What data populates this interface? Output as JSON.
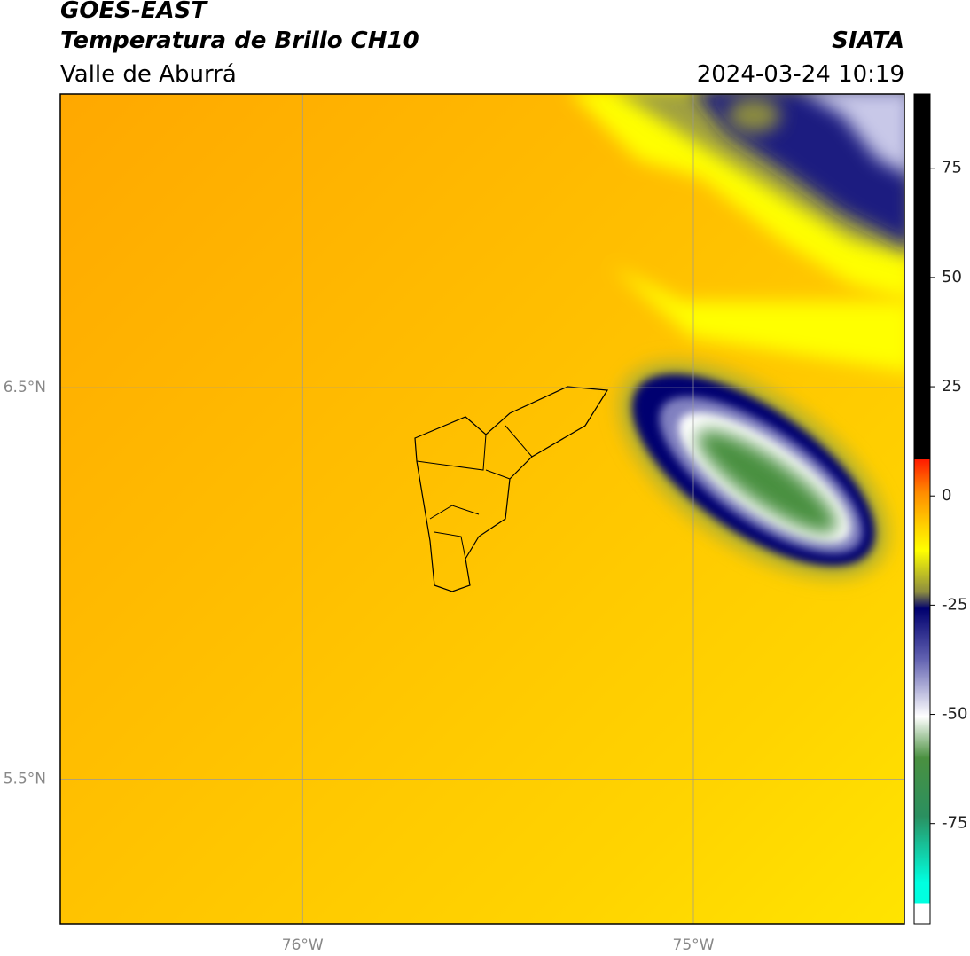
{
  "header": {
    "title": "GOES-EAST",
    "subtitle": "Temperatura de Brillo CH10",
    "region": "Valle de Aburrá",
    "source": "SIATA",
    "datetime": "2024-03-24 10:19"
  },
  "map": {
    "xlim": [
      -76.62,
      -74.46
    ],
    "ylim": [
      5.13,
      7.25
    ],
    "lat_ticks": [
      {
        "value": 6.5,
        "label": "6.5°N"
      },
      {
        "value": 5.5,
        "label": "5.5°N"
      }
    ],
    "lon_ticks": [
      {
        "value": -76,
        "label": "76°W"
      },
      {
        "value": -75,
        "label": "75°W"
      }
    ]
  },
  "colorbar": {
    "lim": [
      -98,
      92
    ],
    "ticks": [
      75,
      50,
      25,
      0,
      -25,
      -50,
      -75
    ]
  }
}
